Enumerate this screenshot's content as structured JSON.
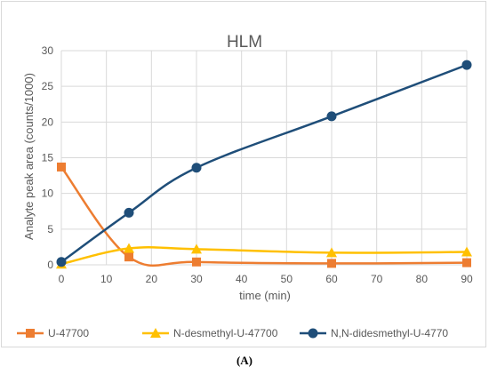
{
  "chart_data": {
    "type": "line",
    "title": "HLM",
    "xlabel": "time (min)",
    "ylabel": "Analyte peak area (counts/1000)",
    "xlim": [
      0,
      90
    ],
    "ylim": [
      0,
      30
    ],
    "x_ticks": [
      0,
      10,
      20,
      30,
      40,
      50,
      60,
      70,
      80,
      90
    ],
    "y_ticks": [
      0,
      5,
      10,
      15,
      20,
      25,
      30
    ],
    "grid": true,
    "smooth": true,
    "legend_position": "bottom",
    "x": [
      0,
      15,
      30,
      60,
      90
    ],
    "series": [
      {
        "name": "U-47700",
        "color": "#ed7d31",
        "marker": "square",
        "values": [
          13.7,
          1.1,
          0.4,
          0.2,
          0.3
        ]
      },
      {
        "name": "N-desmethyl-U-47700",
        "color": "#ffc000",
        "marker": "triangle",
        "values": [
          0.1,
          2.3,
          2.2,
          1.7,
          1.8
        ]
      },
      {
        "name": "N,N-didesmethyl-U-4770",
        "color": "#1f4e79",
        "marker": "circle",
        "values": [
          0.4,
          7.3,
          13.6,
          20.8,
          28.0
        ]
      }
    ]
  },
  "panel_label": "(A)"
}
